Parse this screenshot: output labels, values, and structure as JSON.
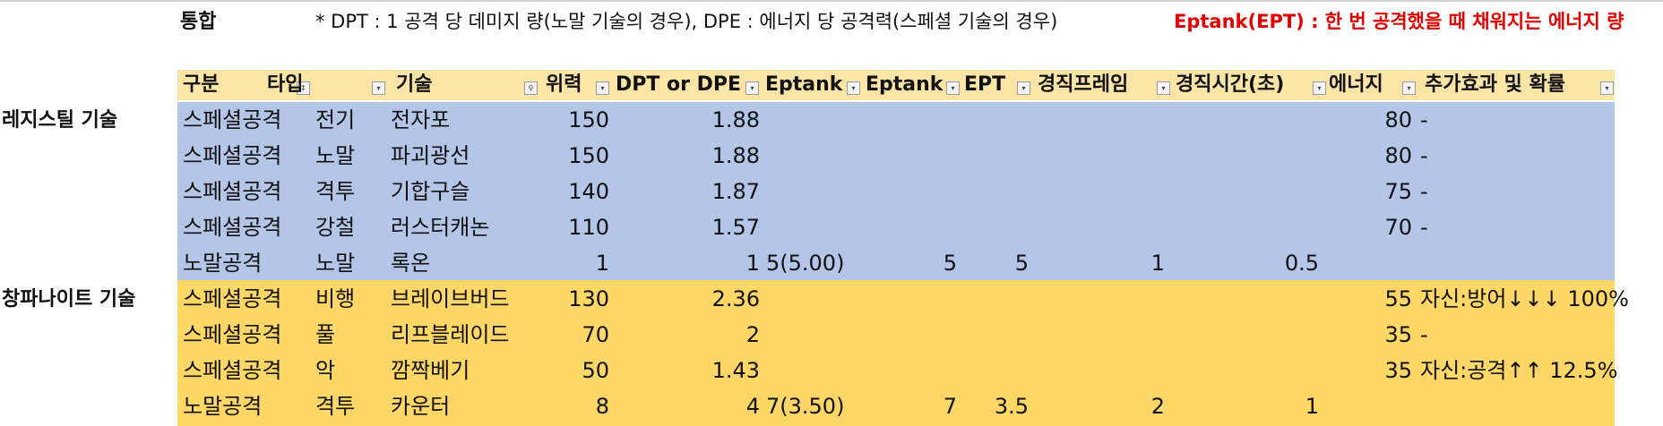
{
  "sheet": {
    "title": "통합",
    "note": "* DPT : 1 공격 당 데미지 량(노말 기술의 경우), DPE : 에너지 당 공격력(스페셜 기술의 경우)",
    "note_red": "Eptank(EPT) : 한 번 공격했을 때 채워지는 에너지 량"
  },
  "groups": [
    "레지스틸 기술",
    "창파나이트 기술"
  ],
  "headers": [
    "구분",
    "타입",
    "기술",
    "위력",
    "DPT or DPE",
    "Eptank",
    "Eptank",
    "EPT",
    "경직프레임",
    "경직시간(초)",
    "에너지",
    "추가효과 및 확률"
  ],
  "rows": [
    {
      "group": "레지스틸 기술",
      "category": "스페셜공격",
      "type": "전기",
      "skill": "전자포",
      "power": "150",
      "dpt": "1.88",
      "eptank": "",
      "eptank2": "",
      "ept": "",
      "frames": "",
      "seconds": "",
      "energy": "80",
      "effect": "-"
    },
    {
      "group": "",
      "category": "스페셜공격",
      "type": "노말",
      "skill": "파괴광선",
      "power": "150",
      "dpt": "1.88",
      "eptank": "",
      "eptank2": "",
      "ept": "",
      "frames": "",
      "seconds": "",
      "energy": "80",
      "effect": "-"
    },
    {
      "group": "",
      "category": "스페셜공격",
      "type": "격투",
      "skill": "기합구슬",
      "power": "140",
      "dpt": "1.87",
      "eptank": "",
      "eptank2": "",
      "ept": "",
      "frames": "",
      "seconds": "",
      "energy": "75",
      "effect": "-"
    },
    {
      "group": "",
      "category": "스페셜공격",
      "type": "강철",
      "skill": "러스터캐논",
      "power": "110",
      "dpt": "1.57",
      "eptank": "",
      "eptank2": "",
      "ept": "",
      "frames": "",
      "seconds": "",
      "energy": "70",
      "effect": "-"
    },
    {
      "group": "",
      "category": "노말공격",
      "type": "노말",
      "skill": "록온",
      "power": "1",
      "dpt": "1",
      "eptank": "5(5.00)",
      "eptank2": "5",
      "ept": "5",
      "frames": "1",
      "seconds": "0.5",
      "energy": "",
      "effect": ""
    },
    {
      "group": "창파나이트 기술",
      "category": "스페셜공격",
      "type": "비행",
      "skill": "브레이브버드",
      "power": "130",
      "dpt": "2.36",
      "eptank": "",
      "eptank2": "",
      "ept": "",
      "frames": "",
      "seconds": "",
      "energy": "55",
      "effect": "자신:방어↓↓↓ 100%"
    },
    {
      "group": "",
      "category": "스페셜공격",
      "type": "풀",
      "skill": "리프블레이드",
      "power": "70",
      "dpt": "2",
      "eptank": "",
      "eptank2": "",
      "ept": "",
      "frames": "",
      "seconds": "",
      "energy": "35",
      "effect": "-"
    },
    {
      "group": "",
      "category": "스페셜공격",
      "type": "악",
      "skill": "깜짝베기",
      "power": "50",
      "dpt": "1.43",
      "eptank": "",
      "eptank2": "",
      "ept": "",
      "frames": "",
      "seconds": "",
      "energy": "35",
      "effect": "자신:공격↑↑ 12.5%"
    },
    {
      "group": "",
      "category": "노말공격",
      "type": "격투",
      "skill": "카운터",
      "power": "8",
      "dpt": "4",
      "eptank": "7(3.50)",
      "eptank2": "7",
      "ept": "3.5",
      "frames": "2",
      "seconds": "1",
      "energy": "",
      "effect": ""
    }
  ],
  "colors": {
    "header": "#fbe5a6",
    "blue_band": "#b4c6e7",
    "gold_band": "#fed766",
    "note_red": "#e00000"
  }
}
